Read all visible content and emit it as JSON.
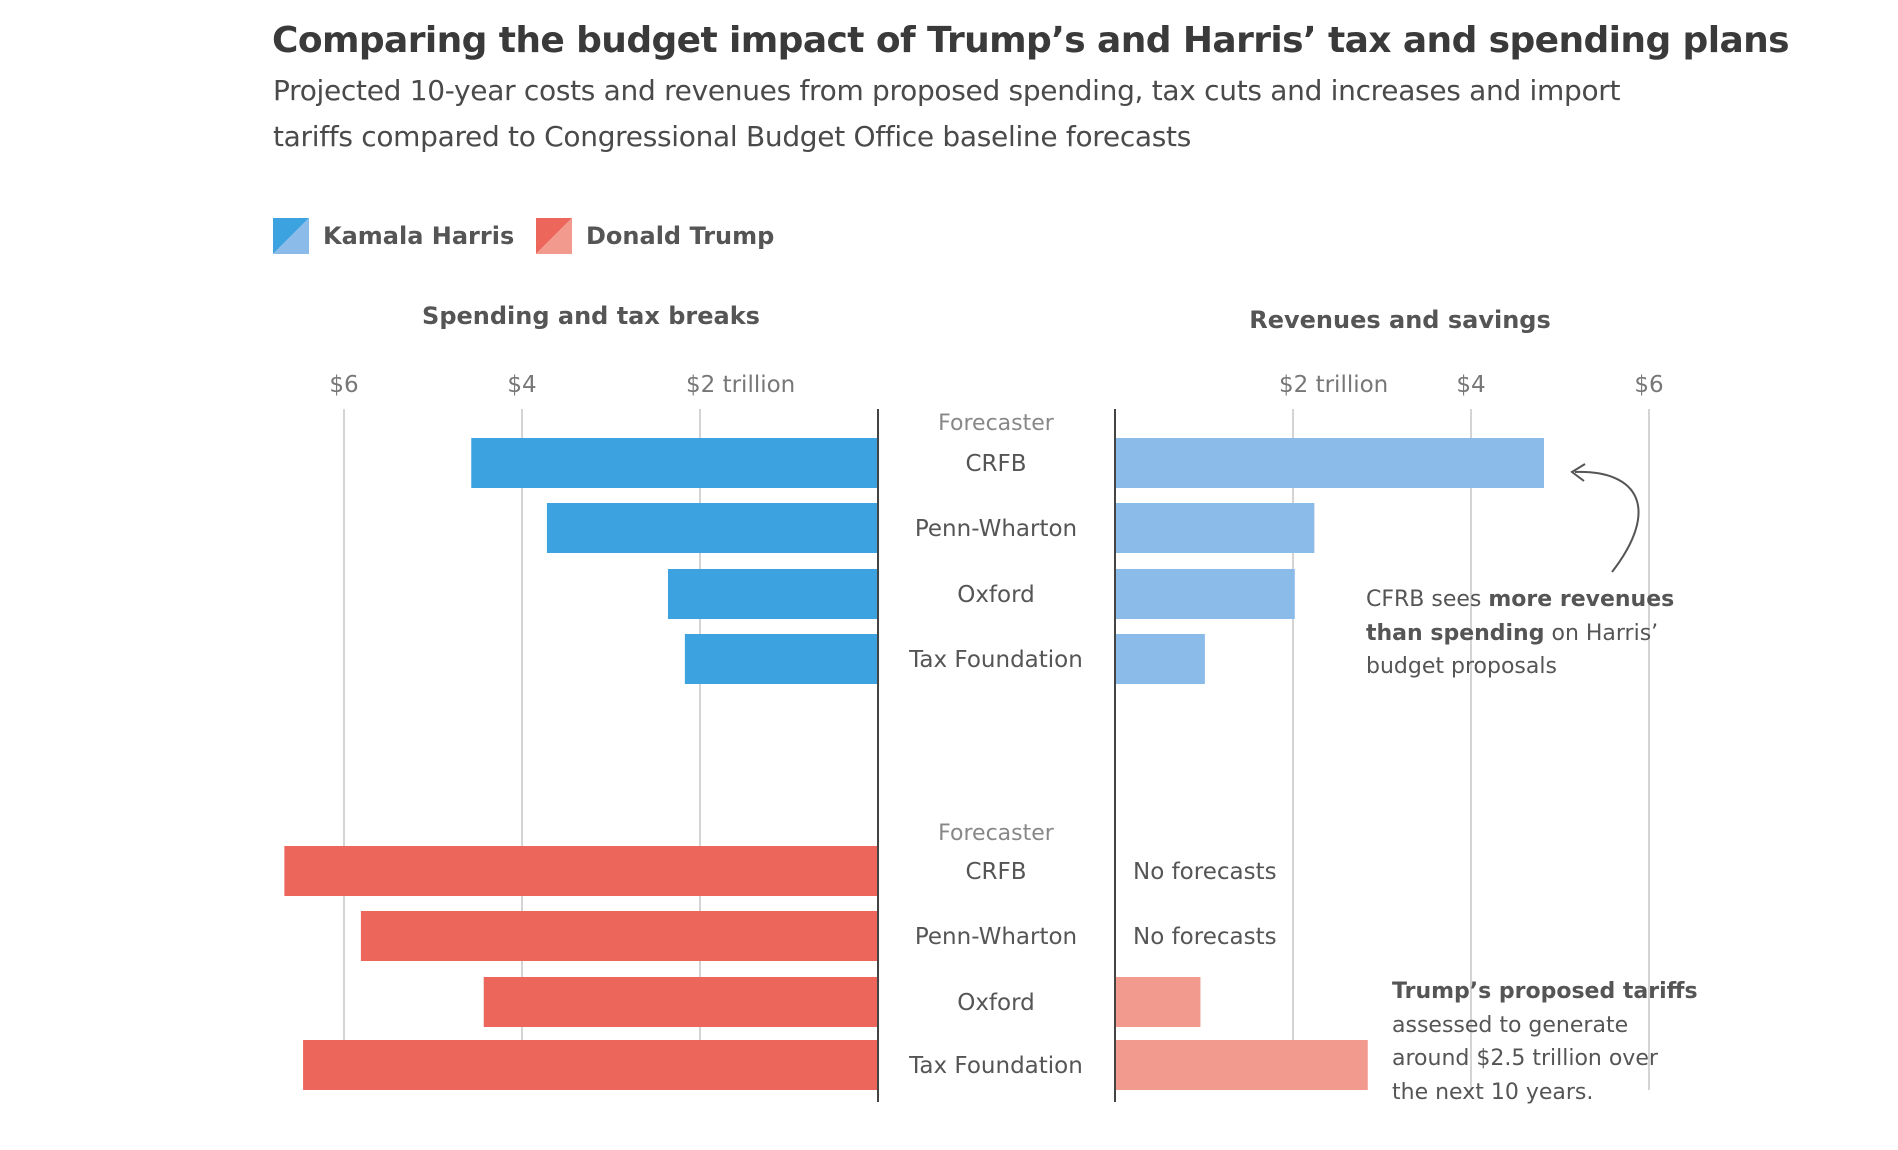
{
  "title": "Comparing the budget impact of Trump’s and Harris’ tax and spending plans",
  "subtitle_lines": [
    "Projected 10-year costs and revenues from proposed spending, tax cuts and increases and import",
    "tariffs compared to Congressional Budget Office baseline forecasts"
  ],
  "legend": [
    {
      "label": "Kamala Harris",
      "color_dark": "#3da2e0",
      "color_light": "#8bbbe9"
    },
    {
      "label": "Donald Trump",
      "color_dark": "#ec665c",
      "color_light": "#f39a8e"
    }
  ],
  "panels": {
    "left_title": "Spending and tax breaks",
    "right_title": "Revenues and savings",
    "left_ticks": [
      "$6",
      "$4",
      "$2 trillion"
    ],
    "right_ticks": [
      "$2 trillion",
      "$4",
      "$6"
    ],
    "forecaster_label": "Forecaster",
    "no_forecast_label": "No forecasts"
  },
  "annotations": {
    "harris": [
      {
        "text": "CFRB sees ",
        "bold": false
      },
      {
        "text": "more revenues",
        "bold": true
      },
      {
        "text": "\n",
        "bold": false
      },
      {
        "text": "than spending",
        "bold": true
      },
      {
        "text": " on Harris’",
        "bold": false
      },
      {
        "text": "\n",
        "bold": false
      },
      {
        "text": "budget proposals",
        "bold": false
      }
    ],
    "trump": [
      {
        "text": "Trump’s proposed tariffs",
        "bold": true
      },
      {
        "text": "\n",
        "bold": false
      },
      {
        "text": "assessed to generate",
        "bold": false
      },
      {
        "text": "\n",
        "bold": false
      },
      {
        "text": "around $2.5 trillion over",
        "bold": false
      },
      {
        "text": "\n",
        "bold": false
      },
      {
        "text": "the next 10 years.",
        "bold": false
      }
    ]
  },
  "chart_data": {
    "type": "bar",
    "orientation": "horizontal-butterfly",
    "title": "Comparing the budget impact of Trump’s and Harris’ tax and spending plans",
    "units": "trillion USD (10-year)",
    "categories": [
      "CRFB",
      "Penn-Wharton",
      "Oxford",
      "Tax Foundation"
    ],
    "xlim": [
      0,
      6
    ],
    "ticks": [
      2,
      4,
      6
    ],
    "grid": true,
    "legend_position": "top-left",
    "groups": [
      {
        "name": "Kamala Harris",
        "spending_and_tax_breaks": [
          4.57,
          3.72,
          2.36,
          2.17
        ],
        "revenues_and_savings": [
          4.82,
          2.24,
          2.02,
          1.01
        ]
      },
      {
        "name": "Donald Trump",
        "spending_and_tax_breaks": [
          6.67,
          5.81,
          4.43,
          6.46
        ],
        "revenues_and_savings": [
          null,
          null,
          0.96,
          2.84
        ]
      }
    ]
  }
}
